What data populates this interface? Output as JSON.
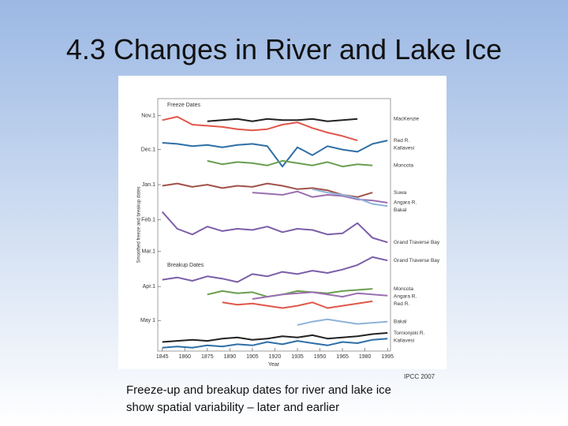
{
  "slide_title": "4.3 Changes in River and Lake Ice",
  "caption": "Freeze-up and breakup dates for river and lake ice show spatial variability – later and earlier",
  "source": "IPCC 2007",
  "chart_data": {
    "type": "line",
    "freeze_label": "Freeze Dates",
    "breakup_label": "Breakup Dates",
    "xlabel": "Year",
    "ylabel": "Smoothed freeze and breakup dates",
    "y_inverted": true,
    "x": [
      1845,
      1855,
      1865,
      1875,
      1885,
      1895,
      1905,
      1915,
      1925,
      1935,
      1945,
      1955,
      1965,
      1975,
      1985,
      1995
    ],
    "xlim": [
      1842,
      1997
    ],
    "xticks": [
      1845,
      1860,
      1875,
      1890,
      1905,
      1920,
      1935,
      1950,
      1965,
      1980,
      1995
    ],
    "ylim": [
      -15,
      208
    ],
    "yticks": [
      {
        "value": 0,
        "label": "Nov.1"
      },
      {
        "value": 30,
        "label": "Dec.1"
      },
      {
        "value": 61,
        "label": "Jan.1"
      },
      {
        "value": 92,
        "label": "Feb.1"
      },
      {
        "value": 120,
        "label": "Mar.1"
      },
      {
        "value": 151,
        "label": "Apr.1"
      },
      {
        "value": 181,
        "label": "May 1"
      }
    ],
    "series": [
      {
        "name": "MacKenzie",
        "color": "#222222",
        "values": [
          null,
          null,
          null,
          5,
          4,
          3,
          5,
          3,
          4,
          4,
          3,
          5,
          4,
          3,
          null,
          null
        ]
      },
      {
        "name": "Red R.",
        "color": "#e0574a",
        "values": [
          4,
          1,
          8,
          9,
          10,
          12,
          13,
          12,
          8,
          6,
          11,
          15,
          18,
          22,
          null,
          null
        ]
      },
      {
        "name": "Kallavesi",
        "color": "#2e6fa7",
        "values": [
          24,
          25,
          27,
          26,
          28,
          26,
          25,
          27,
          45,
          28,
          35,
          27,
          30,
          32,
          25,
          22
        ]
      },
      {
        "name": "Moncota",
        "color": "#6a9e4f",
        "values": [
          null,
          null,
          null,
          40,
          43,
          41,
          42,
          44,
          40,
          42,
          44,
          41,
          45,
          43,
          44,
          null
        ]
      },
      {
        "name": "Suwa",
        "color": "#a0524a",
        "values": [
          62,
          60,
          63,
          61,
          64,
          62,
          63,
          60,
          62,
          65,
          64,
          66,
          70,
          72,
          68,
          null
        ]
      },
      {
        "name": "Angara R.",
        "color": "#9a6fb0",
        "values": [
          null,
          null,
          null,
          null,
          null,
          null,
          68,
          69,
          70,
          67,
          72,
          70,
          71,
          74,
          75,
          77
        ]
      },
      {
        "name": "Bakal",
        "color": "#8fb3d9",
        "values": [
          null,
          null,
          null,
          null,
          null,
          null,
          null,
          null,
          null,
          null,
          65,
          68,
          70,
          73,
          78,
          80
        ]
      },
      {
        "name": "Grand Traverse Bay",
        "color": "#7b5ea8",
        "values": [
          85,
          100,
          105,
          98,
          102,
          100,
          101,
          98,
          103,
          100,
          101,
          105,
          104,
          95,
          108,
          112
        ]
      },
      {
        "name": "Grand Traverse Bay",
        "color": "#7b5ea8",
        "values": [
          145,
          143,
          146,
          142,
          144,
          147,
          140,
          142,
          138,
          140,
          137,
          139,
          136,
          132,
          125,
          128
        ]
      },
      {
        "name": "Moncota",
        "color": "#6a9e4f",
        "values": [
          null,
          null,
          null,
          158,
          155,
          157,
          156,
          160,
          158,
          155,
          156,
          157,
          155,
          154,
          153,
          null
        ]
      },
      {
        "name": "Angara R.",
        "color": "#9a6fb0",
        "values": [
          null,
          null,
          null,
          null,
          null,
          null,
          162,
          160,
          158,
          157,
          156,
          158,
          160,
          157,
          158,
          159
        ]
      },
      {
        "name": "Red R.",
        "color": "#e0574a",
        "values": [
          null,
          null,
          null,
          null,
          165,
          167,
          166,
          168,
          170,
          168,
          165,
          170,
          168,
          166,
          164,
          null
        ]
      },
      {
        "name": "Bakal",
        "color": "#8fb3d9",
        "values": [
          null,
          null,
          null,
          null,
          null,
          null,
          null,
          null,
          null,
          185,
          182,
          180,
          182,
          184,
          183,
          182
        ]
      },
      {
        "name": "Tornionjoki R.",
        "color": "#222222",
        "values": [
          200,
          199,
          198,
          199,
          197,
          196,
          198,
          197,
          195,
          196,
          194,
          197,
          196,
          195,
          193,
          192
        ]
      },
      {
        "name": "Kallavesi",
        "color": "#2e6fa7",
        "values": [
          205,
          204,
          205,
          203,
          204,
          202,
          203,
          200,
          202,
          199,
          201,
          203,
          200,
          201,
          198,
          197
        ]
      }
    ]
  }
}
